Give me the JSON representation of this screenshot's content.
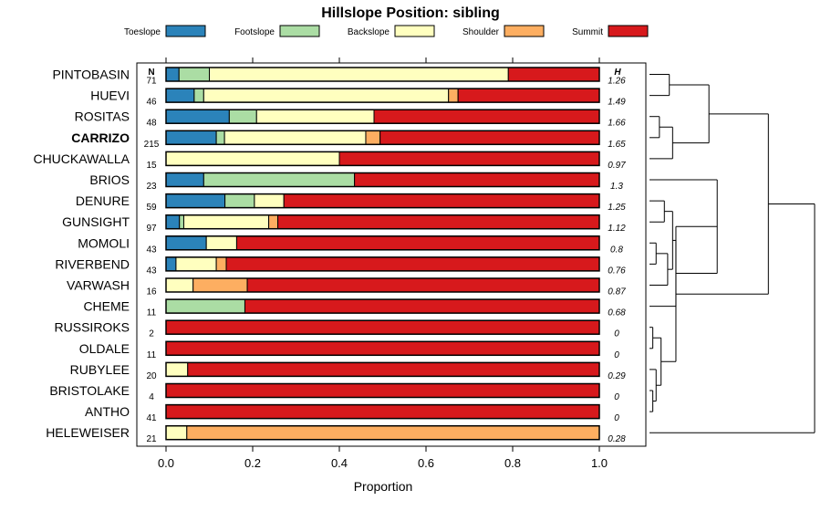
{
  "chart_data": {
    "type": "stacked-bar-horizontal",
    "title": "Hillslope Position: sibling",
    "xlabel": "Proportion",
    "xlim": [
      0,
      1
    ],
    "xticks": [
      "0.0",
      "0.2",
      "0.4",
      "0.6",
      "0.8",
      "1.0"
    ],
    "n_header": "N",
    "h_header": "H",
    "legend": [
      {
        "name": "Toeslope",
        "color": "#2b83ba"
      },
      {
        "name": "Footslope",
        "color": "#abdda4"
      },
      {
        "name": "Backslope",
        "color": "#ffffbf"
      },
      {
        "name": "Shoulder",
        "color": "#fdae61"
      },
      {
        "name": "Summit",
        "color": "#d7191c"
      }
    ],
    "rows": [
      {
        "name": "PINTOBASIN",
        "n": "71",
        "h": "1.26",
        "bold": false,
        "values": [
          0.03,
          0.07,
          0.69,
          0.0,
          0.21
        ]
      },
      {
        "name": "HUEVI",
        "n": "46",
        "h": "1.49",
        "bold": false,
        "values": [
          0.065,
          0.022,
          0.565,
          0.022,
          0.326
        ]
      },
      {
        "name": "ROSITAS",
        "n": "48",
        "h": "1.66",
        "bold": false,
        "values": [
          0.146,
          0.063,
          0.271,
          0.0,
          0.52
        ]
      },
      {
        "name": "CARRIZO",
        "n": "215",
        "h": "1.65",
        "bold": true,
        "values": [
          0.116,
          0.019,
          0.326,
          0.033,
          0.506
        ]
      },
      {
        "name": "CHUCKAWALLA",
        "n": "15",
        "h": "0.97",
        "bold": false,
        "values": [
          0.0,
          0.0,
          0.4,
          0.0,
          0.6
        ]
      },
      {
        "name": "BRIOS",
        "n": "23",
        "h": "1.3",
        "bold": false,
        "values": [
          0.087,
          0.348,
          0.0,
          0.0,
          0.565
        ]
      },
      {
        "name": "DENURE",
        "n": "59",
        "h": "1.25",
        "bold": false,
        "values": [
          0.136,
          0.068,
          0.068,
          0.0,
          0.728
        ]
      },
      {
        "name": "GUNSIGHT",
        "n": "97",
        "h": "1.12",
        "bold": false,
        "values": [
          0.031,
          0.01,
          0.196,
          0.021,
          0.742
        ]
      },
      {
        "name": "MOMOLI",
        "n": "43",
        "h": "0.8",
        "bold": false,
        "values": [
          0.093,
          0.0,
          0.07,
          0.0,
          0.837
        ]
      },
      {
        "name": "RIVERBEND",
        "n": "43",
        "h": "0.76",
        "bold": false,
        "values": [
          0.023,
          0.0,
          0.093,
          0.023,
          0.861
        ]
      },
      {
        "name": "VARWASH",
        "n": "16",
        "h": "0.87",
        "bold": false,
        "values": [
          0.0,
          0.0,
          0.0625,
          0.125,
          0.8125
        ]
      },
      {
        "name": "CHEME",
        "n": "11",
        "h": "0.68",
        "bold": false,
        "values": [
          0.0,
          0.182,
          0.0,
          0.0,
          0.818
        ]
      },
      {
        "name": "RUSSIROKS",
        "n": "2",
        "h": "0",
        "bold": false,
        "values": [
          0.0,
          0.0,
          0.0,
          0.0,
          1.0
        ]
      },
      {
        "name": "OLDALE",
        "n": "11",
        "h": "0",
        "bold": false,
        "values": [
          0.0,
          0.0,
          0.0,
          0.0,
          1.0
        ]
      },
      {
        "name": "RUBYLEE",
        "n": "20",
        "h": "0.29",
        "bold": false,
        "values": [
          0.0,
          0.0,
          0.05,
          0.0,
          0.95
        ]
      },
      {
        "name": "BRISTOLAKE",
        "n": "4",
        "h": "0",
        "bold": false,
        "values": [
          0.0,
          0.0,
          0.0,
          0.0,
          1.0
        ]
      },
      {
        "name": "ANTHO",
        "n": "41",
        "h": "0",
        "bold": false,
        "values": [
          0.0,
          0.0,
          0.0,
          0.0,
          1.0
        ]
      },
      {
        "name": "HELEWEISER",
        "n": "21",
        "h": "0.28",
        "bold": false,
        "values": [
          0.0,
          0.0,
          0.048,
          0.952,
          0.0
        ]
      }
    ],
    "dendrogram": {
      "leaf_order": [
        "PINTOBASIN",
        "HUEVI",
        "ROSITAS",
        "CARRIZO",
        "CHUCKAWALLA",
        "BRIOS",
        "DENURE",
        "GUNSIGHT",
        "MOMOLI",
        "RIVERBEND",
        "VARWASH",
        "CHEME",
        "RUSSIROKS",
        "OLDALE",
        "RUBYLEE",
        "BRISTOLAKE",
        "ANTHO",
        "HELEWEISER"
      ],
      "merges": [
        {
          "a": "L0",
          "b": "L1",
          "height": 0.12
        },
        {
          "a": "L2",
          "b": "L3",
          "height": 0.06
        },
        {
          "a": "N1",
          "b": "L4",
          "height": 0.14
        },
        {
          "a": "N0",
          "b": "N2",
          "height": 0.36
        },
        {
          "a": "L8",
          "b": "L9",
          "height": 0.04
        },
        {
          "a": "N4",
          "b": "L10",
          "height": 0.11
        },
        {
          "a": "L6",
          "b": "L7",
          "height": 0.09
        },
        {
          "a": "N6",
          "b": "N5",
          "height": 0.14
        },
        {
          "a": "N7",
          "b": "L11",
          "height": 0.16
        },
        {
          "a": "N8",
          "b": "L5",
          "height": 0.41
        },
        {
          "a": "L12",
          "b": "L13",
          "height": 0.02
        },
        {
          "a": "L15",
          "b": "L16",
          "height": 0.02
        },
        {
          "a": "N11",
          "b": "L14",
          "height": 0.04
        },
        {
          "a": "N10",
          "b": "N12",
          "height": 0.07
        },
        {
          "a": "N13",
          "b": "N9",
          "height": 0.16
        },
        {
          "a": "N3",
          "b": "N14",
          "height": 0.72
        },
        {
          "a": "N15",
          "b": "L17",
          "height": 1.0
        }
      ]
    }
  }
}
